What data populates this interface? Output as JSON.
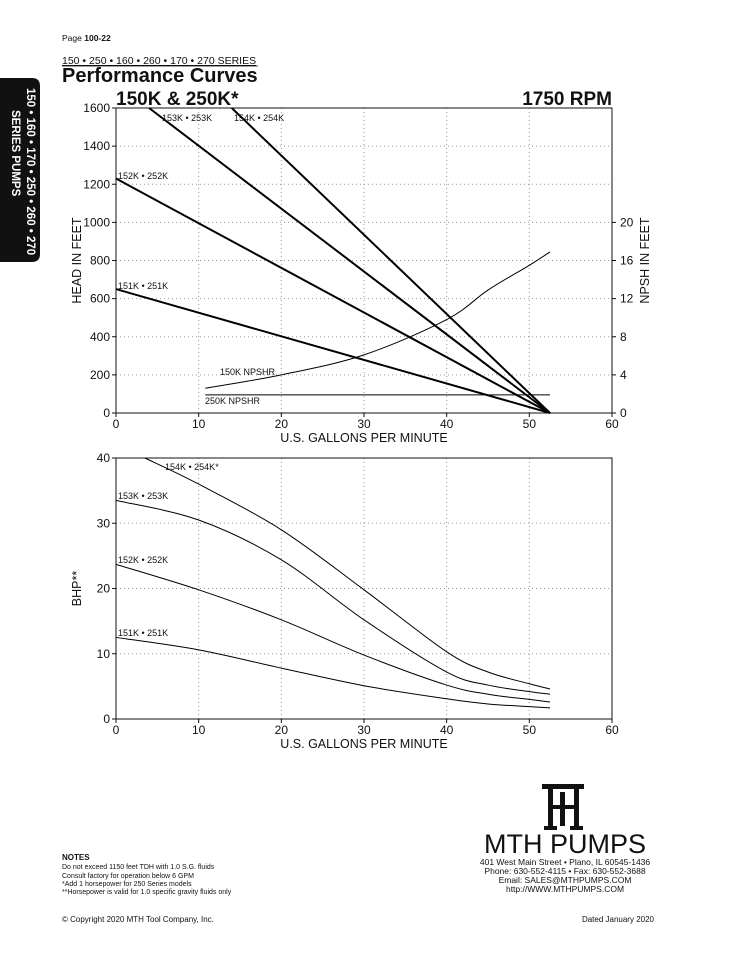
{
  "header": {
    "page_label": "Page",
    "page_number": "100-22",
    "series": "150 • 250 • 160 • 260 • 170 • 270 SERIES",
    "title": "Performance Curves"
  },
  "side_tab": {
    "line1": "150 • 160 • 170 • 250 • 260 • 270",
    "line2": "SERIES PUMPS"
  },
  "chart_data": [
    {
      "type": "line",
      "title": "150K & 250K*",
      "subtitle": "1750 RPM",
      "xlabel": "U.S. GALLONS PER MINUTE",
      "ylabel": "HEAD IN FEET",
      "y2label": "NPSH IN FEET",
      "xlim": [
        0,
        60
      ],
      "xticks": [
        0,
        10,
        20,
        30,
        40,
        50,
        60
      ],
      "ylim": [
        0,
        1600
      ],
      "yticks": [
        0,
        200,
        400,
        600,
        800,
        1000,
        1200,
        1400,
        1600
      ],
      "y2lim": [
        0,
        32
      ],
      "y2ticks": [
        0,
        4,
        8,
        12,
        16,
        20
      ],
      "grid": true,
      "series": [
        {
          "name": "153K • 253K",
          "color": "#000000",
          "x": [
            4,
            52.5
          ],
          "values": [
            1600,
            0
          ]
        },
        {
          "name": "154K • 254K",
          "color": "#000000",
          "x": [
            14,
            52.5
          ],
          "values": [
            1600,
            0
          ]
        },
        {
          "name": "152K • 252K",
          "color": "#000000",
          "x": [
            0,
            52.5
          ],
          "values": [
            1230,
            0
          ]
        },
        {
          "name": "151K • 251K",
          "color": "#000000",
          "x": [
            0,
            52.5
          ],
          "values": [
            650,
            0
          ]
        },
        {
          "name": "150K NPSHR",
          "color": "#000000",
          "axis": "y2",
          "x": [
            10.8,
            20,
            30,
            40,
            45,
            50,
            52.5
          ],
          "values": [
            2.6,
            4.0,
            6.1,
            9.8,
            12.9,
            15.5,
            16.9
          ]
        },
        {
          "name": "250K NPSHR",
          "color": "#000000",
          "axis": "y2",
          "x": [
            10.8,
            52.5
          ],
          "values": [
            1.9,
            1.9
          ]
        }
      ]
    },
    {
      "type": "line",
      "xlabel": "U.S. GALLONS PER MINUTE",
      "ylabel": "BHP**",
      "xlim": [
        0,
        60
      ],
      "xticks": [
        0,
        10,
        20,
        30,
        40,
        50,
        60
      ],
      "ylim": [
        0,
        40
      ],
      "yticks": [
        0,
        10,
        20,
        30,
        40
      ],
      "grid": true,
      "series": [
        {
          "name": "154K • 254K*",
          "color": "#000000",
          "x": [
            3.5,
            10,
            20,
            30,
            40,
            45,
            50,
            52.5
          ],
          "values": [
            40,
            36,
            29,
            19.8,
            10.3,
            7.2,
            5.4,
            4.6
          ]
        },
        {
          "name": "153K • 253K",
          "color": "#000000",
          "x": [
            0,
            10,
            20,
            30,
            40,
            45,
            50,
            52.5
          ],
          "values": [
            33.5,
            30.5,
            24.4,
            15.2,
            7.2,
            5.2,
            4.2,
            3.8
          ]
        },
        {
          "name": "152K • 252K",
          "color": "#000000",
          "x": [
            0,
            10,
            20,
            30,
            40,
            45,
            50,
            52.5
          ],
          "values": [
            23.7,
            19.8,
            15.2,
            9.8,
            5.2,
            3.8,
            3,
            2.6
          ]
        },
        {
          "name": "151K • 251K",
          "color": "#000000",
          "x": [
            0,
            10,
            20,
            30,
            40,
            45,
            50,
            52.5
          ],
          "values": [
            12.5,
            10.6,
            7.8,
            5.1,
            3.1,
            2.3,
            1.9,
            1.7
          ]
        }
      ]
    }
  ],
  "notes": {
    "title": "NOTES",
    "lines": [
      "Do not exceed 1150 feet TDH with 1.0 S.G. fluids",
      "Consult factory for operation below 6 GPM",
      "*Add 1 horsepower for 250 Series models",
      "**Horsepower is valid for 1.0 specific gravity fluids only"
    ]
  },
  "company": {
    "name": "MTH PUMPS",
    "address": [
      "401 West Main Street • Plano, IL  60545-1436",
      "Phone:  630-552-4115 • Fax:  630-552-3688",
      "Email: SALES@MTHPUMPS.COM",
      "http://WWW.MTHPUMPS.COM"
    ]
  },
  "footer": {
    "copyright": "© Copyright 2020 MTH Tool Company, Inc.",
    "dated": "Dated January 2020"
  }
}
